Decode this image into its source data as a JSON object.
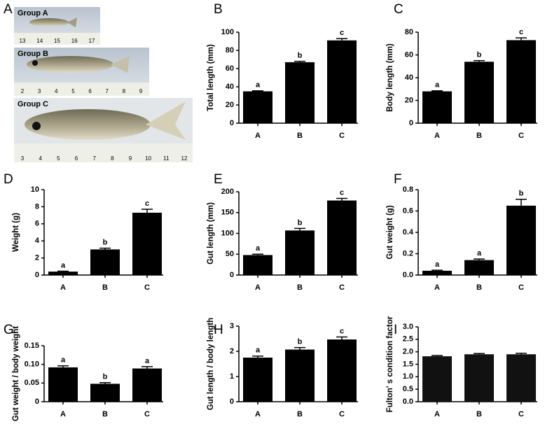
{
  "photo_panel": {
    "panel": "A",
    "groups": [
      {
        "label": "Group A",
        "ruler": [
          "13",
          "14",
          "15",
          "16",
          "17"
        ]
      },
      {
        "label": "Group B",
        "ruler": [
          "2",
          "3",
          "4",
          "5",
          "6",
          "7",
          "8",
          "9"
        ]
      },
      {
        "label": "Group C",
        "ruler": [
          "3",
          "4",
          "5",
          "6",
          "7",
          "8",
          "9",
          "10",
          "11",
          "12"
        ]
      }
    ]
  },
  "chart_data": [
    {
      "type": "bar",
      "panel": "B",
      "y_label": "Total length (mm)",
      "categories": [
        "A",
        "B",
        "C"
      ],
      "values": [
        35,
        67,
        91
      ],
      "errors": [
        0.6,
        1,
        2
      ],
      "letters": [
        "a",
        "b",
        "c"
      ],
      "color": "#000000",
      "ylim": [
        0,
        100
      ],
      "yticks": [
        0,
        20,
        40,
        60,
        80,
        100
      ]
    },
    {
      "type": "bar",
      "panel": "C",
      "y_label": "Body length (mm)",
      "categories": [
        "A",
        "B",
        "C"
      ],
      "values": [
        28,
        54,
        73
      ],
      "errors": [
        0.5,
        1,
        2
      ],
      "letters": [
        "a",
        "b",
        "c"
      ],
      "color": "#000000",
      "ylim": [
        0,
        80
      ],
      "yticks": [
        0,
        20,
        40,
        60,
        80
      ]
    },
    {
      "type": "bar",
      "panel": "D",
      "y_label": "Weight (g)",
      "categories": [
        "A",
        "B",
        "C"
      ],
      "values": [
        0.4,
        3.0,
        7.3
      ],
      "errors": [
        0.05,
        0.15,
        0.4
      ],
      "letters": [
        "a",
        "b",
        "c"
      ],
      "color": "#000000",
      "ylim": [
        0,
        10
      ],
      "yticks": [
        0,
        2,
        4,
        6,
        8,
        10
      ]
    },
    {
      "type": "bar",
      "panel": "E",
      "y_label": "Gut length (mm)",
      "categories": [
        "A",
        "B",
        "C"
      ],
      "values": [
        48,
        107,
        179
      ],
      "errors": [
        2,
        5,
        5
      ],
      "letters": [
        "a",
        "b",
        "c"
      ],
      "color": "#000000",
      "ylim": [
        0,
        200
      ],
      "yticks": [
        0,
        50,
        100,
        150,
        200
      ]
    },
    {
      "type": "bar",
      "panel": "F",
      "y_label": "Gut weight (g)",
      "categories": [
        "A",
        "B",
        "C"
      ],
      "values": [
        0.04,
        0.14,
        0.65
      ],
      "errors": [
        0.005,
        0.01,
        0.06
      ],
      "letters": [
        "a",
        "a",
        "b"
      ],
      "color": "#000000",
      "ylim": [
        0,
        0.8
      ],
      "yticks": [
        {
          "value": 0,
          "label": "0.0"
        },
        0.2,
        0.4,
        0.6,
        0.8
      ]
    },
    {
      "type": "bar",
      "panel": "G",
      "y_label": "Gut weight / body weight",
      "categories": [
        "A",
        "B",
        "C"
      ],
      "values": [
        0.092,
        0.048,
        0.089
      ],
      "errors": [
        0.004,
        0.003,
        0.005
      ],
      "letters": [
        "a",
        "b",
        "a"
      ],
      "color": "#000000",
      "ylim": [
        0,
        0.15
      ],
      "yticks": [
        0,
        0.05,
        {
          "value": 0.1,
          "label": "0.10"
        },
        0.15
      ]
    },
    {
      "type": "bar",
      "panel": "H",
      "y_label": "Gut length / body length",
      "categories": [
        "A",
        "B",
        "C"
      ],
      "values": [
        1.75,
        2.07,
        2.47
      ],
      "errors": [
        0.06,
        0.08,
        0.1
      ],
      "letters": [
        "a",
        "b",
        "c"
      ],
      "color": "#000000",
      "ylim": [
        0,
        3
      ],
      "yticks": [
        0,
        1,
        2,
        3
      ]
    },
    {
      "type": "bar",
      "panel": "I",
      "y_label": "Fulton' s condition factor",
      "categories": [
        "A",
        "B",
        "C"
      ],
      "values": [
        1.82,
        1.9,
        1.9
      ],
      "errors": [
        0.03,
        0.03,
        0.04
      ],
      "color": "#111111",
      "ylim": [
        0,
        3
      ],
      "yticks": [
        {
          "value": 0,
          "label": "0.0"
        },
        0.5,
        {
          "value": 1,
          "label": "1.0"
        },
        1.5,
        {
          "value": 2,
          "label": "2.0"
        },
        2.5,
        {
          "value": 3,
          "label": "3.0"
        }
      ]
    }
  ]
}
